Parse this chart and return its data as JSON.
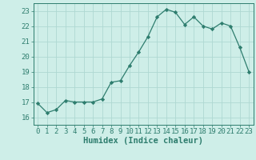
{
  "x": [
    0,
    1,
    2,
    3,
    4,
    5,
    6,
    7,
    8,
    9,
    10,
    11,
    12,
    13,
    14,
    15,
    16,
    17,
    18,
    19,
    20,
    21,
    22,
    23
  ],
  "y": [
    16.9,
    16.3,
    16.5,
    17.1,
    17.0,
    17.0,
    17.0,
    17.2,
    18.3,
    18.4,
    19.4,
    20.3,
    21.3,
    22.6,
    23.1,
    22.9,
    22.1,
    22.6,
    22.0,
    21.8,
    22.2,
    22.0,
    20.6,
    19.0
  ],
  "line_color": "#2e7d6e",
  "marker": "D",
  "marker_size": 2.2,
  "bg_color": "#ceeee8",
  "grid_color": "#aed8d2",
  "tick_color": "#2e7d6e",
  "label_color": "#2e7d6e",
  "xlabel": "Humidex (Indice chaleur)",
  "ylim": [
    15.5,
    23.5
  ],
  "xlim": [
    -0.5,
    23.5
  ],
  "yticks": [
    16,
    17,
    18,
    19,
    20,
    21,
    22,
    23
  ],
  "xticks": [
    0,
    1,
    2,
    3,
    4,
    5,
    6,
    7,
    8,
    9,
    10,
    11,
    12,
    13,
    14,
    15,
    16,
    17,
    18,
    19,
    20,
    21,
    22,
    23
  ],
  "tick_fontsize": 6.5,
  "xlabel_fontsize": 7.5
}
